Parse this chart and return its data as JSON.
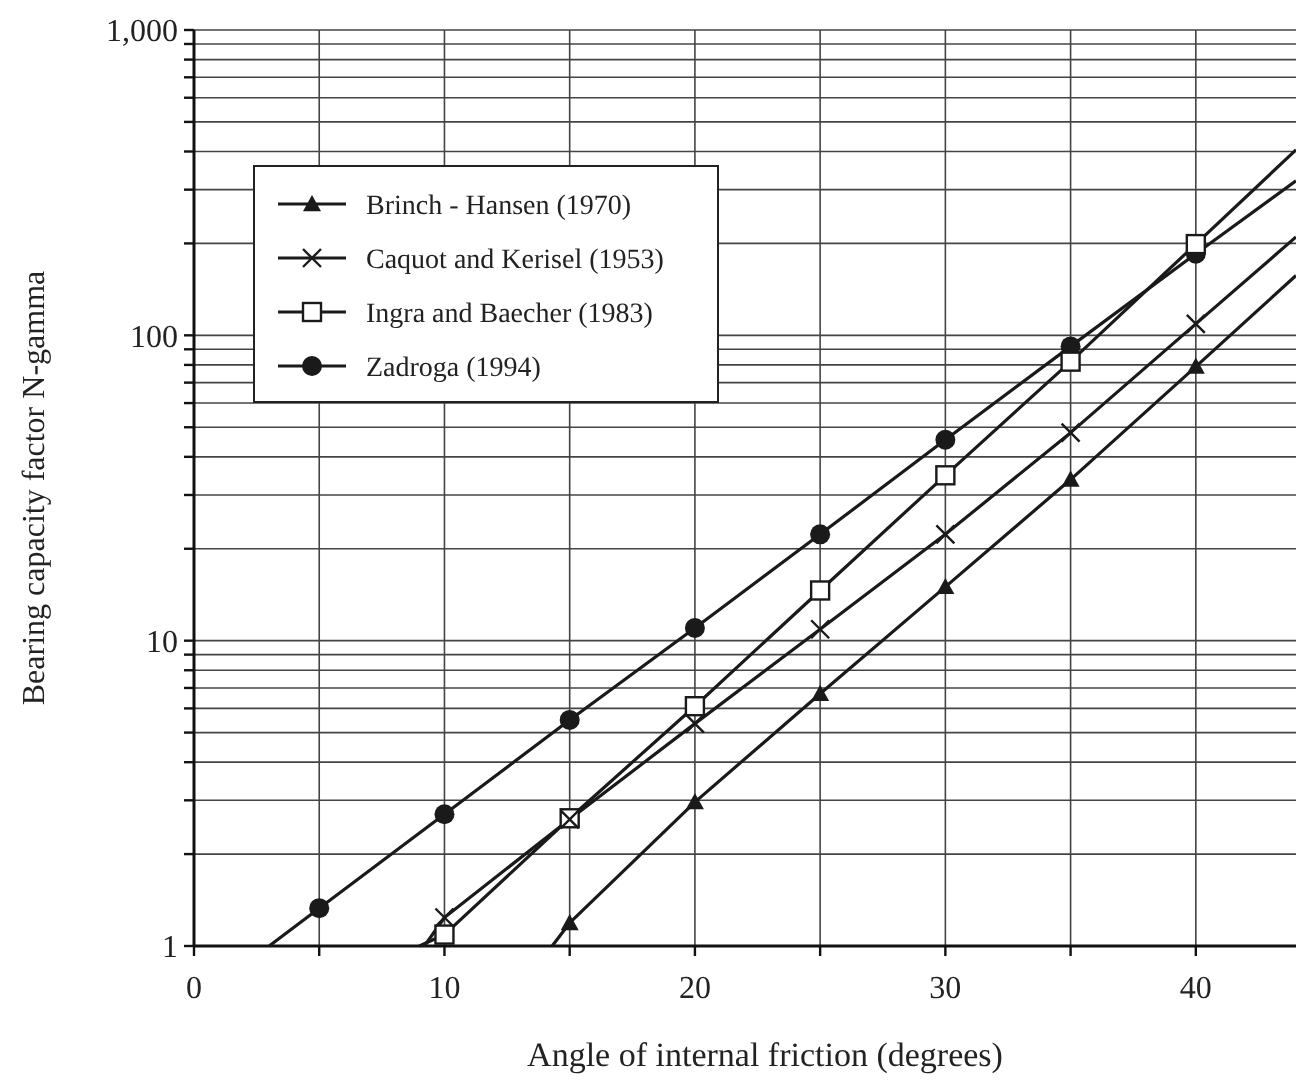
{
  "chart_data": {
    "type": "line",
    "xlabel": "Angle of internal friction (degrees)",
    "ylabel": "Bearing capacity factor N-gamma",
    "xlim": [
      0,
      44
    ],
    "xticks": [
      0,
      {
        "value": 5,
        "label": null
      },
      10,
      {
        "value": 15,
        "label": null
      },
      20,
      {
        "value": 25,
        "label": null
      },
      30,
      {
        "value": 35,
        "label": null
      },
      40
    ],
    "ylim": [
      1,
      1000
    ],
    "log": true,
    "grid": true,
    "legend": "top left",
    "line_style": "solid",
    "yticks": [
      1,
      {
        "value": 2,
        "label": null
      },
      {
        "value": 3,
        "label": null
      },
      {
        "value": 4,
        "label": null
      },
      {
        "value": 5,
        "label": null
      },
      {
        "value": 6,
        "label": null
      },
      {
        "value": 7,
        "label": null
      },
      {
        "value": 8,
        "label": null
      },
      {
        "value": 9,
        "label": null
      },
      10,
      {
        "value": 20,
        "label": null
      },
      {
        "value": 30,
        "label": null
      },
      {
        "value": 40,
        "label": null
      },
      {
        "value": 50,
        "label": null
      },
      {
        "value": 60,
        "label": null
      },
      {
        "value": 70,
        "label": null
      },
      {
        "value": 80,
        "label": null
      },
      {
        "value": 90,
        "label": null
      },
      100,
      {
        "value": 200,
        "label": null
      },
      {
        "value": 300,
        "label": null
      },
      {
        "value": 400,
        "label": null
      },
      {
        "value": 500,
        "label": null
      },
      {
        "value": 600,
        "label": null
      },
      {
        "value": 700,
        "label": null
      },
      {
        "value": 800,
        "label": null
      },
      {
        "value": 900,
        "label": null
      },
      {
        "value": 1000,
        "label": "1,000"
      }
    ],
    "series": [
      {
        "name": "Brinch - Hansen (1970)",
        "color": "#1a1a1a",
        "marker": "triangle",
        "x": [
          15,
          20,
          25,
          30,
          35,
          40
        ],
        "values": [
          1.19,
          2.96,
          6.7,
          15,
          33.7,
          79
        ]
      },
      {
        "name": "Caquot and Kerisel (1953)",
        "color": "#1a1a1a",
        "marker": "cross",
        "x": [
          10,
          15,
          20,
          25,
          30,
          35,
          40
        ],
        "values": [
          1.24,
          2.6,
          5.35,
          10.9,
          22.3,
          48,
          109
        ]
      },
      {
        "name": "Ingra and Baecher (1983)",
        "color": "#1a1a1a",
        "marker": "square",
        "x": [
          10,
          15,
          20,
          25,
          30,
          35,
          40
        ],
        "values": [
          1.09,
          2.62,
          6.1,
          14.6,
          34.8,
          82,
          199
        ]
      },
      {
        "name": "Zadroga (1994)",
        "color": "#1a1a1a",
        "marker": "circle",
        "x": [
          5,
          10,
          15,
          20,
          25,
          30,
          35,
          40
        ],
        "values": [
          1.33,
          2.7,
          5.5,
          11,
          22.3,
          45.5,
          92,
          185
        ]
      },
      {
        "color": "#1a1a1a",
        "marker": "none",
        "x": [
          14.3,
          15
        ],
        "values": [
          1,
          1.19
        ]
      },
      {
        "color": "#1a1a1a",
        "marker": "none",
        "x": [
          40,
          44
        ],
        "values": [
          79,
          157
        ]
      },
      {
        "color": "#1a1a1a",
        "marker": "none",
        "x": [
          9.2,
          10
        ],
        "values": [
          1,
          1.24
        ]
      },
      {
        "color": "#1a1a1a",
        "marker": "none",
        "x": [
          40,
          44
        ],
        "values": [
          109,
          210
        ]
      },
      {
        "color": "#1a1a1a",
        "marker": "none",
        "x": [
          9,
          10
        ],
        "values": [
          1,
          1.09
        ]
      },
      {
        "color": "#1a1a1a",
        "marker": "none",
        "x": [
          40,
          44
        ],
        "values": [
          199,
          405
        ]
      },
      {
        "color": "#1a1a1a",
        "marker": "none",
        "x": [
          3,
          5
        ],
        "values": [
          1,
          1.33
        ]
      },
      {
        "color": "#1a1a1a",
        "marker": "none",
        "x": [
          40,
          44
        ],
        "values": [
          185,
          321
        ]
      }
    ]
  }
}
